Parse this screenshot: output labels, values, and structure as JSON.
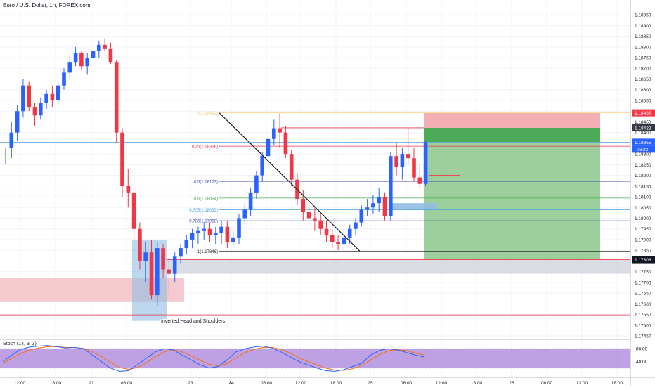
{
  "header": {
    "symbol_title": "Euro / U.S. Dollar, 1h, FOREX.com"
  },
  "annotation": {
    "pattern_label": "Inverted Head and Shoulders"
  },
  "indicator": {
    "label": "Stoch (14, 3, 3)"
  },
  "colors": {
    "bull": "#2962ff",
    "bear": "#f23645",
    "stop_zone": "#f2a1a8",
    "target_zone": "#8cc78c",
    "target_top": "#3fa34d",
    "demand_zone": "#f2b8bd",
    "hs_box": "#90bde3",
    "stoch_band": "#9a6fd6",
    "k_line": "#2962ff",
    "d_line": "#ff6d00"
  },
  "chart_data": {
    "type": "candlestick",
    "title": "Euro / U.S. Dollar, 1h, FOREX.com",
    "ylim": [
      1.1745,
      1.1898
    ],
    "y_ticks": [
      "1.18950",
      "1.18900",
      "1.18850",
      "1.18800",
      "1.18750",
      "1.18700",
      "1.18650",
      "1.18600",
      "1.18550",
      "1.18500",
      "1.18450",
      "1.18400",
      "1.18350",
      "1.18300",
      "1.18250",
      "1.18200",
      "1.18150",
      "1.18100",
      "1.18050",
      "1.18000",
      "1.17950",
      "1.17900",
      "1.17850",
      "1.17800",
      "1.17750",
      "1.17700",
      "1.17650",
      "1.17600",
      "1.17550",
      "1.17500",
      "1.17450"
    ],
    "x_ticks": [
      "12:00",
      "18:00",
      "21",
      "06:00",
      "23",
      "24",
      "06:00",
      "12:00",
      "18:00",
      "25",
      "06:00",
      "12:00",
      "18:00",
      "26",
      "06:00",
      "12:00",
      "18:00"
    ],
    "price_labels": {
      "stop": "1.18492",
      "high_marker": "1.18422",
      "current": "1.18355",
      "countdown": "06:23",
      "target": "1.17806"
    },
    "fib_levels": [
      {
        "label": "0(1.18492)",
        "price": 1.18492,
        "color": "#f6d27a"
      },
      {
        "label": "0.25(1.18336)",
        "price": 1.18336,
        "color": "#f23645"
      },
      {
        "label": "0.5(1.18172)",
        "price": 1.18172,
        "color": "#3f51b5"
      },
      {
        "label": "0.6(1.18094)",
        "price": 1.18094,
        "color": "#4caf50"
      },
      {
        "label": "0.705(1.18039)",
        "price": 1.18039,
        "color": "#4aa3df"
      },
      {
        "label": "0.786(1.17988)",
        "price": 1.17988,
        "color": "#3f51b5"
      },
      {
        "label": "1(1.17846)",
        "price": 1.17846,
        "color": "#333333"
      }
    ],
    "levels": {
      "support": 1.17806,
      "low_line": 1.17548,
      "current_line": 1.18355
    },
    "candles": [
      [
        1.1833,
        1.1833,
        1.1825,
        1.1833
      ],
      [
        1.1833,
        1.1845,
        1.1828,
        1.184
      ],
      [
        1.184,
        1.1853,
        1.1836,
        1.185
      ],
      [
        1.185,
        1.1865,
        1.1847,
        1.1862
      ],
      [
        1.1862,
        1.1864,
        1.185,
        1.1852
      ],
      [
        1.1852,
        1.1854,
        1.1843,
        1.1848
      ],
      [
        1.1848,
        1.1856,
        1.1846,
        1.1854
      ],
      [
        1.1854,
        1.186,
        1.1851,
        1.1858
      ],
      [
        1.1858,
        1.1862,
        1.1852,
        1.1855
      ],
      [
        1.1855,
        1.1864,
        1.1853,
        1.1862
      ],
      [
        1.1862,
        1.187,
        1.186,
        1.1868
      ],
      [
        1.1868,
        1.1876,
        1.1865,
        1.1873
      ],
      [
        1.1873,
        1.188,
        1.1871,
        1.1877
      ],
      [
        1.1877,
        1.1878,
        1.1869,
        1.1871
      ],
      [
        1.1871,
        1.1877,
        1.1867,
        1.1875
      ],
      [
        1.1875,
        1.188,
        1.1872,
        1.1878
      ],
      [
        1.1878,
        1.1883,
        1.1875,
        1.1881
      ],
      [
        1.1881,
        1.1884,
        1.1878,
        1.1879
      ],
      [
        1.1879,
        1.1882,
        1.1872,
        1.1873
      ],
      [
        1.1873,
        1.1874,
        1.1835,
        1.184
      ],
      [
        1.184,
        1.1842,
        1.181,
        1.1815
      ],
      [
        1.1815,
        1.1823,
        1.1805,
        1.1812
      ],
      [
        1.1812,
        1.1814,
        1.179,
        1.1795
      ],
      [
        1.1795,
        1.1798,
        1.1776,
        1.178
      ],
      [
        1.178,
        1.1789,
        1.177,
        1.1784
      ],
      [
        1.1784,
        1.179,
        1.1762,
        1.1764
      ],
      [
        1.1764,
        1.1789,
        1.1759,
        1.1786
      ],
      [
        1.1786,
        1.1788,
        1.1772,
        1.1776
      ],
      [
        1.1776,
        1.1781,
        1.1764,
        1.1774
      ],
      [
        1.1774,
        1.1784,
        1.177,
        1.1782
      ],
      [
        1.1782,
        1.1788,
        1.1779,
        1.1786
      ],
      [
        1.1786,
        1.1792,
        1.1783,
        1.179
      ],
      [
        1.179,
        1.1795,
        1.1786,
        1.1793
      ],
      [
        1.1793,
        1.1796,
        1.1788,
        1.1794
      ],
      [
        1.1794,
        1.1798,
        1.179,
        1.1795
      ],
      [
        1.1795,
        1.1798,
        1.1789,
        1.1792
      ],
      [
        1.1792,
        1.1796,
        1.1788,
        1.1793
      ],
      [
        1.1793,
        1.1799,
        1.1788,
        1.1796
      ],
      [
        1.1796,
        1.1799,
        1.1786,
        1.1789
      ],
      [
        1.1789,
        1.1794,
        1.1787,
        1.1791
      ],
      [
        1.1791,
        1.1802,
        1.1788,
        1.18
      ],
      [
        1.18,
        1.1807,
        1.1797,
        1.1804
      ],
      [
        1.1804,
        1.1814,
        1.1801,
        1.1812
      ],
      [
        1.1812,
        1.1822,
        1.1809,
        1.182
      ],
      [
        1.182,
        1.1831,
        1.1817,
        1.1829
      ],
      [
        1.1829,
        1.1839,
        1.1826,
        1.1837
      ],
      [
        1.1837,
        1.1846,
        1.1834,
        1.1842
      ],
      [
        1.1842,
        1.1849,
        1.1833,
        1.184
      ],
      [
        1.184,
        1.1843,
        1.1828,
        1.183
      ],
      [
        1.183,
        1.1832,
        1.1815,
        1.1818
      ],
      [
        1.1818,
        1.1821,
        1.1806,
        1.1809
      ],
      [
        1.1809,
        1.1813,
        1.1799,
        1.1803
      ],
      [
        1.1803,
        1.1808,
        1.1796,
        1.18
      ],
      [
        1.18,
        1.1805,
        1.1794,
        1.1799
      ],
      [
        1.1799,
        1.1802,
        1.1792,
        1.1795
      ],
      [
        1.1795,
        1.1799,
        1.1789,
        1.1792
      ],
      [
        1.1792,
        1.1795,
        1.1786,
        1.1789
      ],
      [
        1.1789,
        1.1792,
        1.1785,
        1.1788
      ],
      [
        1.1788,
        1.1792,
        1.1785,
        1.1791
      ],
      [
        1.1791,
        1.1797,
        1.1788,
        1.1795
      ],
      [
        1.1795,
        1.18,
        1.1792,
        1.1798
      ],
      [
        1.1798,
        1.1806,
        1.1796,
        1.1804
      ],
      [
        1.1804,
        1.1809,
        1.1801,
        1.1805
      ],
      [
        1.1805,
        1.1811,
        1.1802,
        1.1807
      ],
      [
        1.1807,
        1.1814,
        1.1803,
        1.181
      ],
      [
        1.181,
        1.1812,
        1.1799,
        1.1801
      ],
      [
        1.1801,
        1.1831,
        1.1799,
        1.1829
      ],
      [
        1.1829,
        1.1835,
        1.182,
        1.1824
      ],
      [
        1.1824,
        1.1833,
        1.1818,
        1.183
      ],
      [
        1.183,
        1.1842,
        1.1825,
        1.1828
      ],
      [
        1.1828,
        1.1833,
        1.1817,
        1.1819
      ],
      [
        1.1819,
        1.1825,
        1.1814,
        1.1816
      ],
      [
        1.1816,
        1.1836,
        1.1815,
        1.18355
      ]
    ],
    "stoch": {
      "ylim": [
        0,
        100
      ],
      "y_ticks": [
        "80.00",
        "40.00"
      ],
      "band": [
        20,
        80
      ],
      "k": [
        40,
        60,
        78,
        85,
        88,
        90,
        86,
        82,
        84,
        80,
        60,
        40,
        20,
        10,
        12,
        30,
        50,
        70,
        80,
        76,
        60,
        45,
        30,
        20,
        25,
        45,
        70,
        80,
        85,
        88,
        82,
        70,
        55,
        40,
        30,
        20,
        12,
        10,
        15,
        25,
        35,
        60,
        75,
        80,
        76,
        68,
        60,
        54
      ],
      "d": [
        35,
        50,
        65,
        76,
        82,
        86,
        86,
        84,
        83,
        81,
        70,
        55,
        38,
        22,
        16,
        22,
        36,
        55,
        70,
        77,
        70,
        58,
        44,
        32,
        26,
        34,
        52,
        68,
        78,
        84,
        84,
        78,
        66,
        52,
        40,
        30,
        20,
        14,
        13,
        18,
        28,
        45,
        62,
        74,
        77,
        74,
        66,
        60
      ]
    }
  }
}
